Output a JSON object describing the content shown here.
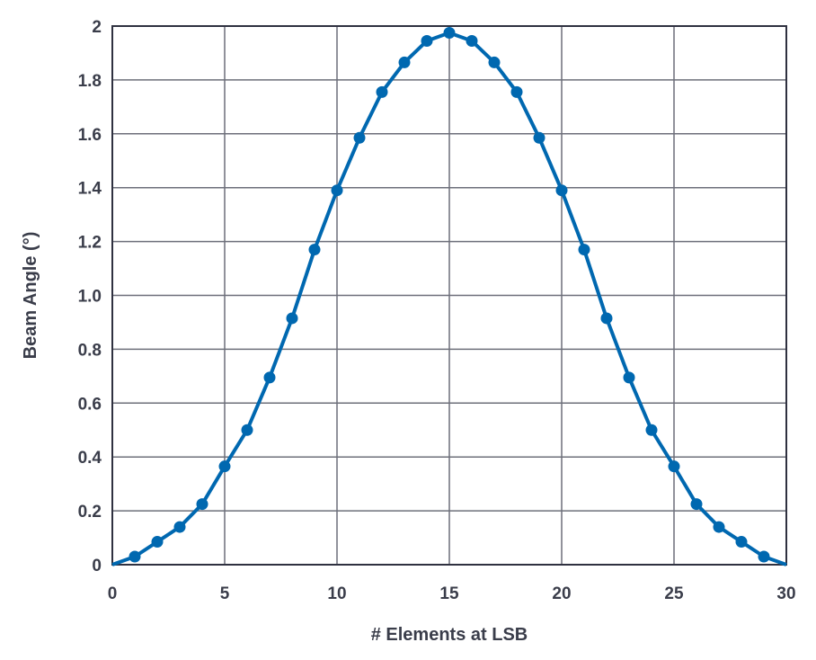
{
  "chart_data": {
    "type": "line",
    "title": "",
    "xlabel": "# Elements at LSB",
    "ylabel": "Beam Angle (°)",
    "xlim": [
      0,
      30
    ],
    "ylim": [
      0,
      2
    ],
    "x_ticks": [
      "0",
      "5",
      "10",
      "15",
      "20",
      "25",
      "30"
    ],
    "y_ticks": [
      "0",
      "0.2",
      "0.4",
      "0.6",
      "0.8",
      "1.0",
      "1.2",
      "1.4",
      "1.6",
      "1.8",
      "2"
    ],
    "grid": true,
    "legend": "none",
    "line_color": "#0068b0",
    "series": [
      {
        "x": [
          0,
          1,
          2,
          3,
          4,
          5,
          6,
          7,
          8,
          9,
          10,
          11,
          12,
          13,
          14,
          15,
          16,
          17,
          18,
          19,
          20,
          21,
          22,
          23,
          24,
          25,
          26,
          27,
          28,
          29,
          30
        ],
        "y": [
          0,
          0.03,
          0.085,
          0.14,
          0.225,
          0.365,
          0.5,
          0.695,
          0.915,
          1.17,
          1.39,
          1.585,
          1.755,
          1.865,
          1.945,
          1.975,
          1.945,
          1.865,
          1.755,
          1.585,
          1.39,
          1.17,
          0.915,
          0.695,
          0.5,
          0.365,
          0.225,
          0.14,
          0.085,
          0.03,
          0
        ],
        "markers": [
          false,
          true,
          true,
          true,
          true,
          true,
          true,
          true,
          true,
          true,
          true,
          true,
          true,
          true,
          true,
          true,
          true,
          true,
          true,
          true,
          true,
          true,
          true,
          true,
          true,
          true,
          true,
          true,
          true,
          true,
          false
        ]
      }
    ]
  }
}
